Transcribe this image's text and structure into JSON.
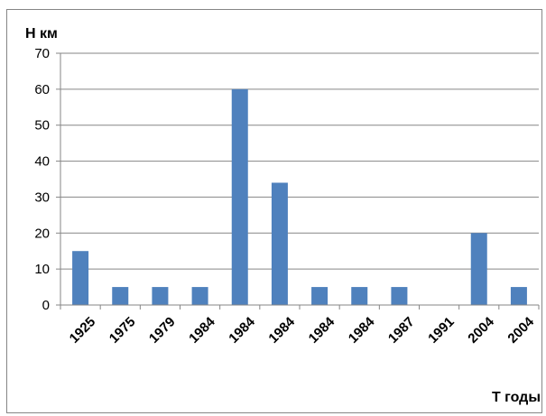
{
  "chart_data": {
    "type": "bar",
    "ylabel": "Н км",
    "xlabel": "Т годы",
    "categories": [
      "1925",
      "1975",
      "1979",
      "1984",
      "1984",
      "1984",
      "1984",
      "1984",
      "1987",
      "1991",
      "2004",
      "2004"
    ],
    "values": [
      15,
      5,
      5,
      5,
      60,
      34,
      5,
      5,
      5,
      0,
      20,
      5
    ],
    "ylim": [
      0,
      70
    ],
    "yticks": [
      "0",
      "10",
      "20",
      "30",
      "40",
      "50",
      "60",
      "70"
    ],
    "grid": true,
    "legend": "none",
    "bar_color": "#4F81BD"
  }
}
